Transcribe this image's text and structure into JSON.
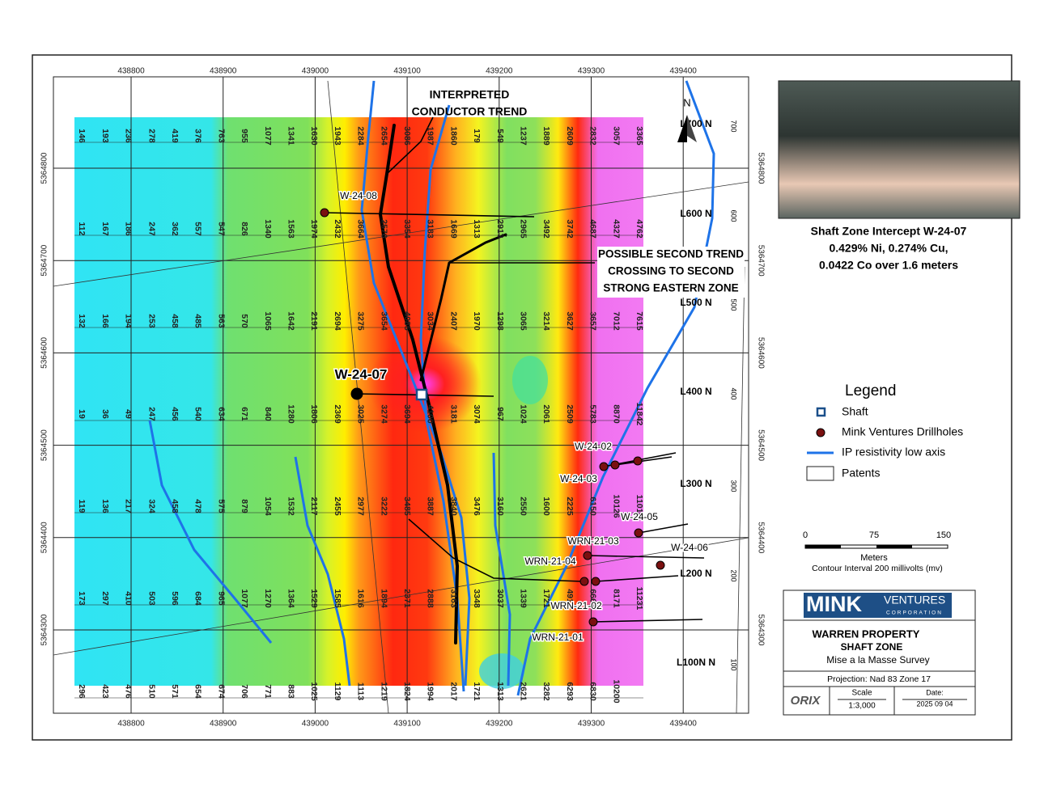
{
  "map": {
    "eastings": [
      438800,
      438900,
      439000,
      439100,
      439200,
      439300,
      439400
    ],
    "northings": [
      5364800,
      5364700,
      5364600,
      5364500,
      5364400,
      5364300
    ],
    "survey_lines": [
      {
        "label": "L700 N",
        "station": "700",
        "values": [
          "146",
          "193",
          "236",
          "278",
          "419",
          "376",
          "763",
          "955",
          "1077",
          "1341",
          "1630",
          "1943",
          "2284",
          "2654",
          "3086",
          "1987",
          "1860",
          "179",
          "549",
          "1237",
          "1889",
          "2609",
          "2832",
          "3057",
          "3365"
        ]
      },
      {
        "label": "L600 N",
        "station": "600",
        "values": [
          "112",
          "167",
          "186",
          "247",
          "362",
          "557",
          "547",
          "826",
          "1340",
          "1563",
          "1974",
          "2432",
          "3664",
          "2576",
          "3354",
          "3183",
          "1669",
          "1313",
          "2913",
          "2965",
          "3492",
          "3742",
          "4687",
          "4327",
          "4762"
        ]
      },
      {
        "label": "L500 N",
        "station": "500",
        "values": [
          "132",
          "166",
          "194",
          "253",
          "458",
          "485",
          "563",
          "570",
          "1065",
          "1642",
          "2191",
          "2694",
          "3275",
          "3654",
          "4085",
          "3034",
          "2407",
          "1970",
          "1298",
          "3065",
          "3214",
          "3627",
          "3657",
          "7012",
          "7615"
        ]
      },
      {
        "label": "L400 N",
        "station": "400",
        "values": [
          "19",
          "36",
          "49",
          "247",
          "456",
          "540",
          "634",
          "671",
          "840",
          "1280",
          "1806",
          "2369",
          "3025",
          "3274",
          "3694",
          "4100",
          "3181",
          "3074",
          "967",
          "1024",
          "2061",
          "2509",
          "5783",
          "8870",
          "11842"
        ]
      },
      {
        "label": "L300 N",
        "station": "300",
        "values": [
          "119",
          "136",
          "217",
          "324",
          "458",
          "478",
          "575",
          "879",
          "1054",
          "1532",
          "2117",
          "2455",
          "2977",
          "3222",
          "3485",
          "3887",
          "3840",
          "3476",
          "3160",
          "2550",
          "1600",
          "2225",
          "6150",
          "10126",
          "11010"
        ]
      },
      {
        "label": "L200 N",
        "station": "200",
        "values": [
          "173",
          "297",
          "410",
          "503",
          "596",
          "684",
          "965",
          "1077",
          "1270",
          "1364",
          "1529",
          "1585",
          "1616",
          "1894",
          "2371",
          "2888",
          "3163",
          "3348",
          "3037",
          "1339",
          "1721",
          "4915",
          "6663",
          "8171",
          "11231"
        ]
      },
      {
        "label": "L100N N",
        "station": "100",
        "values": [
          "296",
          "423",
          "476",
          "510",
          "571",
          "654",
          "674",
          "706",
          "771",
          "883",
          "1025",
          "1129",
          "1113",
          "1219",
          "1824",
          "1994",
          "2017",
          "1721",
          "1313",
          "2621",
          "3282",
          "6293",
          "6830",
          "10200"
        ]
      }
    ],
    "drillholes": [
      "W-24-08",
      "W-24-07",
      "W-24-02",
      "W-24-03",
      "W-24-05",
      "WRN-21-03",
      "W-24-06",
      "WRN-21-04",
      "WRN-21-02",
      "WRN-21-01"
    ],
    "north_label": "N",
    "annotations": {
      "conductor": [
        "INTERPRETED",
        "CONDUCTOR TREND"
      ],
      "second_trend": [
        "POSSIBLE SECOND TREND",
        "CROSSING TO SECOND",
        "STRONG EASTERN ZONE"
      ]
    },
    "photo_caption": [
      "Shaft Zone Intercept W-24-07",
      "0.429% Ni, 0.274% Cu,",
      "0.0422 Co over 1.6 meters"
    ],
    "legend": {
      "title": "Legend",
      "items": [
        "Shaft",
        "Mink Ventures Drillholes",
        "IP resistivity low axis",
        "Patents"
      ]
    },
    "scale": {
      "ticks": [
        "0",
        "75",
        "150"
      ],
      "unit": "Meters",
      "note": "Contour Interval 200 millivolts (mv)"
    },
    "title_block": {
      "logo": "MINK",
      "logo_sub": "VENTURES",
      "logo_corp": "CORPORATION",
      "property": "WARREN PROPERTY",
      "zone": "SHAFT ZONE",
      "survey": "Mise a la Masse Survey",
      "projection": "Projection: Nad 83 Zone 17",
      "scale_label": "Scale",
      "scale_value": "1:3,000",
      "date_label": "Date:",
      "date_value": "2025 09 04"
    }
  }
}
